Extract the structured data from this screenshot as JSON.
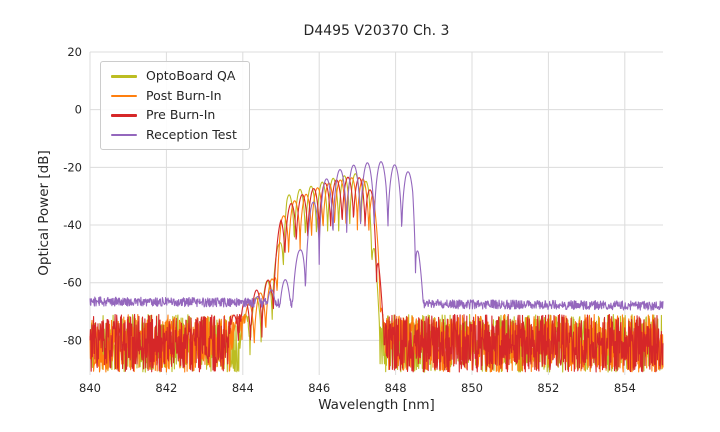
{
  "chart_data": {
    "type": "line",
    "title": "D4495 V20370 Ch. 3",
    "xlabel": "Wavelength [nm]",
    "ylabel": "Optical Power [dB]",
    "xlim": [
      840,
      855
    ],
    "ylim": [
      -92,
      20
    ],
    "xticks": [
      840,
      842,
      844,
      846,
      848,
      850,
      852,
      854
    ],
    "yticks": [
      20,
      0,
      -20,
      -40,
      -60,
      -80
    ],
    "grid": true,
    "legend_position": "upper-left",
    "samples_per_nm": 96,
    "colors": {
      "grid": "#dcdcdc",
      "text": "#262626",
      "legend_border": "#cccccc",
      "background": "#ffffff"
    },
    "series": [
      {
        "name": "OptoBoard QA",
        "color": "#bcbd22",
        "noise_floor": [
          -81,
          -81
        ],
        "noise_amplitude": 10,
        "noise_seed": 11,
        "signal_envelope": [
          [
            843.9,
            -74
          ],
          [
            844.3,
            -66
          ],
          [
            844.7,
            -58
          ],
          [
            844.95,
            -46
          ],
          [
            845.15,
            -30
          ],
          [
            845.4,
            -28
          ],
          [
            845.8,
            -26.5
          ],
          [
            846.3,
            -24
          ],
          [
            846.8,
            -22.5
          ],
          [
            847.05,
            -22
          ],
          [
            847.3,
            -26
          ],
          [
            847.45,
            -45
          ],
          [
            847.58,
            -74
          ]
        ],
        "mode_spacing": 0.29,
        "ripple_depth": 20,
        "ripple_sharpness": 0.5
      },
      {
        "name": "Post Burn-In",
        "color": "#ff7f0e",
        "noise_floor": [
          -81,
          -81
        ],
        "noise_amplitude": 10,
        "noise_seed": 22,
        "signal_envelope": [
          [
            843.7,
            -75
          ],
          [
            844.1,
            -68
          ],
          [
            844.5,
            -63
          ],
          [
            844.8,
            -58
          ],
          [
            845.0,
            -38
          ],
          [
            845.3,
            -32
          ],
          [
            845.7,
            -29
          ],
          [
            846.1,
            -26
          ],
          [
            846.5,
            -24.5
          ],
          [
            846.9,
            -23.5
          ],
          [
            847.15,
            -24
          ],
          [
            847.4,
            -28
          ],
          [
            847.55,
            -45
          ],
          [
            847.7,
            -75
          ]
        ],
        "mode_spacing": 0.3,
        "ripple_depth": 18,
        "ripple_sharpness": 0.5
      },
      {
        "name": "Pre Burn-In",
        "color": "#d62728",
        "noise_floor": [
          -81,
          -81
        ],
        "noise_amplitude": 10,
        "noise_seed": 33,
        "signal_envelope": [
          [
            843.6,
            -74
          ],
          [
            844.0,
            -67
          ],
          [
            844.4,
            -62
          ],
          [
            844.75,
            -58
          ],
          [
            845.0,
            -37
          ],
          [
            845.35,
            -31
          ],
          [
            845.75,
            -28
          ],
          [
            846.15,
            -25.5
          ],
          [
            846.55,
            -24
          ],
          [
            846.9,
            -23
          ],
          [
            847.15,
            -24
          ],
          [
            847.4,
            -29
          ],
          [
            847.55,
            -48
          ],
          [
            847.68,
            -75
          ]
        ],
        "mode_spacing": 0.3,
        "ripple_depth": 18,
        "ripple_sharpness": 0.5
      },
      {
        "name": "Reception Test",
        "color": "#9467bd",
        "noise_floor": [
          -66.5,
          -68
        ],
        "noise_amplitude": 1.6,
        "noise_seed": 44,
        "signal_envelope": [
          [
            844.2,
            -66
          ],
          [
            844.8,
            -62
          ],
          [
            845.2,
            -58
          ],
          [
            845.5,
            -48
          ],
          [
            845.8,
            -33
          ],
          [
            846.1,
            -25
          ],
          [
            846.4,
            -21.5
          ],
          [
            846.8,
            -19.5
          ],
          [
            847.2,
            -18.5
          ],
          [
            847.6,
            -18
          ],
          [
            847.95,
            -19
          ],
          [
            848.25,
            -20.5
          ],
          [
            848.45,
            -23
          ],
          [
            848.6,
            -45
          ],
          [
            848.72,
            -66.5
          ]
        ],
        "mode_spacing": 0.36,
        "ripple_depth": 26,
        "ripple_sharpness": 0.45
      }
    ]
  }
}
